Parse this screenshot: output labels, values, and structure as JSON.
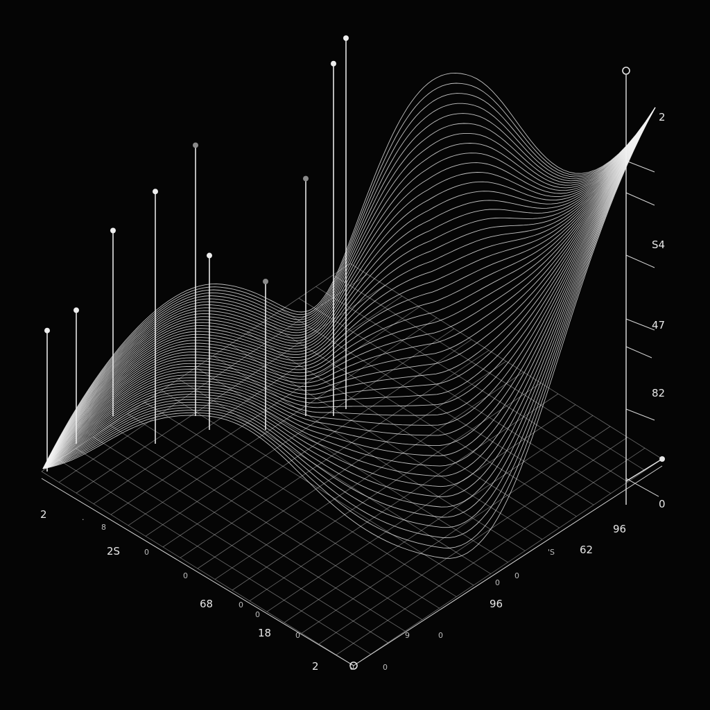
{
  "chart_data": {
    "type": "surface",
    "title": "",
    "background_color": "#050505",
    "line_color": "#f2f2f2",
    "grid": true,
    "z_axis": {
      "tick_labels": [
        "2",
        "S4",
        "47",
        "82",
        "0"
      ]
    },
    "x_axis": {
      "tick_labels": [
        "2",
        ".",
        "8",
        "2S",
        "0",
        "0",
        "68",
        "0",
        "0",
        "18",
        "0",
        "2"
      ]
    },
    "y_axis": {
      "tick_labels": [
        "0",
        "0",
        "9",
        "0",
        "96",
        "0",
        "0",
        "'S",
        "62",
        "96"
      ]
    },
    "stems": [
      {
        "height": 0.38,
        "tone": "light"
      },
      {
        "height": 0.36,
        "tone": "light"
      },
      {
        "height": 0.5,
        "tone": "light"
      },
      {
        "height": 0.68,
        "tone": "light"
      },
      {
        "height": 0.73,
        "tone": "dim"
      },
      {
        "height": 0.47,
        "tone": "light"
      },
      {
        "height": 0.4,
        "tone": "dim"
      },
      {
        "height": 0.64,
        "tone": "dim"
      },
      {
        "height": 0.95,
        "tone": "light"
      },
      {
        "height": 1.0,
        "tone": "light"
      }
    ]
  }
}
